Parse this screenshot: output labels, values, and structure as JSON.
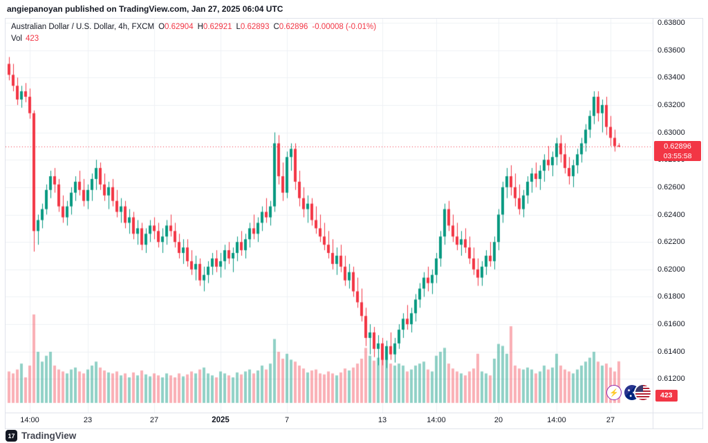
{
  "header": {
    "attribution": "angiepanoyan published on TradingView.com, Jan 27, 2025 06:04 UTC"
  },
  "legend": {
    "symbol_line": "Australian Dollar / U.S. Dollar, 4h, FXCM",
    "ohlc": [
      {
        "label": "O",
        "value": "0.62904"
      },
      {
        "label": "H",
        "value": "0.62921"
      },
      {
        "label": "L",
        "value": "0.62893"
      },
      {
        "label": "C",
        "value": "0.62896"
      }
    ],
    "change": "-0.00008 (-0.01%)",
    "volume_label": "Vol",
    "volume_value": "423"
  },
  "price_scale": {
    "last_price_label": "0.62896",
    "countdown": "03:55:58",
    "volume_axis_value": "423",
    "ticks": [
      "0.63800",
      "0.63600",
      "0.63400",
      "0.63200",
      "0.63000",
      "0.62800",
      "0.62600",
      "0.62400",
      "0.62200",
      "0.62000",
      "0.61800",
      "0.61600",
      "0.61400",
      "0.61200"
    ]
  },
  "time_scale": {
    "ticks": [
      {
        "label": "14:00",
        "index": 5
      },
      {
        "label": "23",
        "index": 19
      },
      {
        "label": "27",
        "index": 35
      },
      {
        "label": "2025",
        "index": 51,
        "bold": true
      },
      {
        "label": "7",
        "index": 67
      },
      {
        "label": "13",
        "index": 90
      },
      {
        "label": "14:00",
        "index": 103
      },
      {
        "label": "20",
        "index": 118
      },
      {
        "label": "14:00",
        "index": 132
      },
      {
        "label": "27",
        "index": 145
      }
    ]
  },
  "footer": {
    "brand": "TradingView",
    "logo_glyph": "17"
  },
  "icons": {
    "lightning_glyph": "⚡"
  },
  "colors": {
    "up": "#089981",
    "down": "#f23645",
    "volume_up": "rgba(8,153,129,0.45)",
    "volume_down": "rgba(242,54,69,0.4)",
    "grid": "#eef1f5",
    "border": "#e0e3eb",
    "axis_text": "#131722",
    "badge_red": "#f23645"
  },
  "chart_data": {
    "type": "candlestick+volume",
    "title": "Australian Dollar / U.S. Dollar, 4h, FXCM",
    "ylim": [
      0.60955,
      0.6383
    ],
    "grid": true,
    "last_price": 0.62896,
    "price_grid_step": 0.002,
    "candle_format": [
      "open",
      "high",
      "low",
      "close",
      "volume"
    ],
    "candles": [
      [
        0.635,
        0.6355,
        0.6338,
        0.6342,
        320
      ],
      [
        0.6342,
        0.635,
        0.633,
        0.6334,
        300
      ],
      [
        0.6334,
        0.634,
        0.632,
        0.6324,
        340
      ],
      [
        0.6324,
        0.6334,
        0.6318,
        0.633,
        400
      ],
      [
        0.633,
        0.6336,
        0.6322,
        0.6326,
        260
      ],
      [
        0.6326,
        0.6332,
        0.631,
        0.6314,
        380
      ],
      [
        0.6314,
        0.6316,
        0.6213,
        0.6228,
        900
      ],
      [
        0.6228,
        0.624,
        0.6218,
        0.6236,
        520
      ],
      [
        0.6236,
        0.6248,
        0.623,
        0.6244,
        420
      ],
      [
        0.6244,
        0.6262,
        0.624,
        0.6258,
        480
      ],
      [
        0.6258,
        0.6272,
        0.6252,
        0.6268,
        520
      ],
      [
        0.6268,
        0.6274,
        0.6256,
        0.6262,
        380
      ],
      [
        0.6262,
        0.6266,
        0.6242,
        0.6246,
        340
      ],
      [
        0.6246,
        0.6254,
        0.6234,
        0.6238,
        320
      ],
      [
        0.6238,
        0.625,
        0.6232,
        0.6246,
        300
      ],
      [
        0.6246,
        0.626,
        0.624,
        0.6256,
        340
      ],
      [
        0.6256,
        0.6268,
        0.625,
        0.6264,
        360
      ],
      [
        0.6264,
        0.6272,
        0.6254,
        0.6258,
        320
      ],
      [
        0.6258,
        0.6266,
        0.6246,
        0.625,
        300
      ],
      [
        0.625,
        0.6262,
        0.6244,
        0.6258,
        340
      ],
      [
        0.6258,
        0.627,
        0.625,
        0.6266,
        380
      ],
      [
        0.6266,
        0.628,
        0.6258,
        0.6274,
        420
      ],
      [
        0.6274,
        0.6278,
        0.6258,
        0.6262,
        360
      ],
      [
        0.6262,
        0.627,
        0.625,
        0.6254,
        330
      ],
      [
        0.6254,
        0.6264,
        0.6244,
        0.626,
        310
      ],
      [
        0.626,
        0.6266,
        0.6246,
        0.625,
        300
      ],
      [
        0.625,
        0.6258,
        0.6238,
        0.6242,
        320
      ],
      [
        0.6242,
        0.6252,
        0.6234,
        0.6246,
        280
      ],
      [
        0.6246,
        0.625,
        0.623,
        0.6234,
        300
      ],
      [
        0.6234,
        0.6244,
        0.6226,
        0.6238,
        260
      ],
      [
        0.6238,
        0.6242,
        0.6222,
        0.6226,
        310
      ],
      [
        0.6226,
        0.6236,
        0.6218,
        0.623,
        280
      ],
      [
        0.623,
        0.6234,
        0.6214,
        0.6218,
        330
      ],
      [
        0.6218,
        0.623,
        0.6212,
        0.6226,
        290
      ],
      [
        0.6226,
        0.6236,
        0.622,
        0.6232,
        270
      ],
      [
        0.6232,
        0.6238,
        0.6222,
        0.6228,
        300
      ],
      [
        0.6228,
        0.6234,
        0.6216,
        0.622,
        280
      ],
      [
        0.622,
        0.623,
        0.6212,
        0.6224,
        260
      ],
      [
        0.6224,
        0.6236,
        0.6218,
        0.6232,
        300
      ],
      [
        0.6232,
        0.624,
        0.6224,
        0.6228,
        280
      ],
      [
        0.6228,
        0.6234,
        0.6216,
        0.622,
        260
      ],
      [
        0.622,
        0.6226,
        0.6208,
        0.6212,
        300
      ],
      [
        0.6212,
        0.6222,
        0.6204,
        0.6216,
        270
      ],
      [
        0.6216,
        0.6222,
        0.6202,
        0.6206,
        290
      ],
      [
        0.6206,
        0.6214,
        0.6196,
        0.62,
        320
      ],
      [
        0.62,
        0.621,
        0.6192,
        0.6204,
        300
      ],
      [
        0.6204,
        0.6208,
        0.6188,
        0.6192,
        340
      ],
      [
        0.6192,
        0.6202,
        0.6184,
        0.6196,
        360
      ],
      [
        0.6196,
        0.6206,
        0.619,
        0.6202,
        300
      ],
      [
        0.6202,
        0.6212,
        0.6196,
        0.6208,
        280
      ],
      [
        0.6208,
        0.6214,
        0.6198,
        0.6202,
        260
      ],
      [
        0.6202,
        0.6212,
        0.6194,
        0.6206,
        320
      ],
      [
        0.6206,
        0.6218,
        0.62,
        0.6214,
        300
      ],
      [
        0.6214,
        0.622,
        0.6204,
        0.6208,
        280
      ],
      [
        0.6208,
        0.6216,
        0.6198,
        0.6212,
        260
      ],
      [
        0.6212,
        0.6224,
        0.6206,
        0.622,
        310
      ],
      [
        0.622,
        0.6228,
        0.621,
        0.6214,
        290
      ],
      [
        0.6214,
        0.6226,
        0.6208,
        0.6222,
        320
      ],
      [
        0.6222,
        0.6234,
        0.6216,
        0.623,
        340
      ],
      [
        0.623,
        0.624,
        0.6222,
        0.6226,
        300
      ],
      [
        0.6226,
        0.6238,
        0.622,
        0.6234,
        330
      ],
      [
        0.6234,
        0.6246,
        0.6228,
        0.6242,
        380
      ],
      [
        0.6242,
        0.6252,
        0.6234,
        0.6238,
        340
      ],
      [
        0.6238,
        0.625,
        0.6232,
        0.6246,
        400
      ],
      [
        0.6246,
        0.63,
        0.6242,
        0.6292,
        650
      ],
      [
        0.6292,
        0.6298,
        0.6262,
        0.6268,
        520
      ],
      [
        0.6268,
        0.6278,
        0.625,
        0.6256,
        450
      ],
      [
        0.6256,
        0.6286,
        0.6252,
        0.6282,
        500
      ],
      [
        0.6282,
        0.6292,
        0.6272,
        0.6288,
        440
      ],
      [
        0.6288,
        0.6292,
        0.6258,
        0.6264,
        420
      ],
      [
        0.6264,
        0.6272,
        0.6246,
        0.6252,
        380
      ],
      [
        0.6252,
        0.626,
        0.6238,
        0.6244,
        350
      ],
      [
        0.6244,
        0.6254,
        0.6234,
        0.6248,
        310
      ],
      [
        0.6248,
        0.6252,
        0.6232,
        0.6236,
        330
      ],
      [
        0.6236,
        0.6246,
        0.6226,
        0.623,
        340
      ],
      [
        0.623,
        0.624,
        0.622,
        0.6224,
        300
      ],
      [
        0.6224,
        0.6234,
        0.6214,
        0.6218,
        290
      ],
      [
        0.6218,
        0.6228,
        0.6208,
        0.6212,
        320
      ],
      [
        0.6212,
        0.6222,
        0.62,
        0.6204,
        300
      ],
      [
        0.6204,
        0.6216,
        0.6196,
        0.621,
        280
      ],
      [
        0.621,
        0.6218,
        0.6198,
        0.6202,
        310
      ],
      [
        0.6202,
        0.621,
        0.6188,
        0.6192,
        350
      ],
      [
        0.6192,
        0.6204,
        0.6186,
        0.6198,
        330
      ],
      [
        0.6198,
        0.6202,
        0.618,
        0.6184,
        360
      ],
      [
        0.6184,
        0.6194,
        0.6172,
        0.6176,
        400
      ],
      [
        0.6176,
        0.6186,
        0.6162,
        0.6166,
        450
      ],
      [
        0.6166,
        0.6172,
        0.6144,
        0.615,
        560
      ],
      [
        0.615,
        0.616,
        0.6138,
        0.6154,
        480
      ],
      [
        0.6154,
        0.6158,
        0.6136,
        0.6142,
        430
      ],
      [
        0.6142,
        0.6152,
        0.613,
        0.6146,
        460
      ],
      [
        0.6146,
        0.615,
        0.613,
        0.6134,
        500
      ],
      [
        0.6134,
        0.6148,
        0.6128,
        0.6144,
        520
      ],
      [
        0.6144,
        0.6154,
        0.6134,
        0.6138,
        400
      ],
      [
        0.6138,
        0.615,
        0.6132,
        0.6146,
        380
      ],
      [
        0.6146,
        0.616,
        0.6142,
        0.6156,
        400
      ],
      [
        0.6156,
        0.6168,
        0.615,
        0.6164,
        380
      ],
      [
        0.6164,
        0.6174,
        0.6156,
        0.616,
        320
      ],
      [
        0.616,
        0.6172,
        0.6154,
        0.6168,
        340
      ],
      [
        0.6168,
        0.6182,
        0.6162,
        0.6178,
        380
      ],
      [
        0.6178,
        0.619,
        0.6172,
        0.6186,
        400
      ],
      [
        0.6186,
        0.6198,
        0.618,
        0.6194,
        420
      ],
      [
        0.6194,
        0.6202,
        0.6184,
        0.619,
        340
      ],
      [
        0.619,
        0.62,
        0.6182,
        0.6196,
        320
      ],
      [
        0.6196,
        0.6212,
        0.619,
        0.6208,
        480
      ],
      [
        0.6208,
        0.6228,
        0.6202,
        0.6224,
        520
      ],
      [
        0.6224,
        0.6248,
        0.6218,
        0.6244,
        560
      ],
      [
        0.6244,
        0.625,
        0.6228,
        0.6232,
        400
      ],
      [
        0.6232,
        0.624,
        0.622,
        0.6224,
        350
      ],
      [
        0.6224,
        0.6234,
        0.6214,
        0.6218,
        320
      ],
      [
        0.6218,
        0.6228,
        0.621,
        0.6222,
        300
      ],
      [
        0.6222,
        0.623,
        0.6212,
        0.6216,
        280
      ],
      [
        0.6216,
        0.6224,
        0.6204,
        0.6208,
        320
      ],
      [
        0.6208,
        0.6216,
        0.6196,
        0.62,
        350
      ],
      [
        0.62,
        0.6208,
        0.6188,
        0.6194,
        500
      ],
      [
        0.6194,
        0.6206,
        0.6188,
        0.6202,
        320
      ],
      [
        0.6202,
        0.6214,
        0.6196,
        0.621,
        300
      ],
      [
        0.621,
        0.622,
        0.6202,
        0.6206,
        280
      ],
      [
        0.6206,
        0.6224,
        0.62,
        0.622,
        450
      ],
      [
        0.622,
        0.6244,
        0.6214,
        0.624,
        600
      ],
      [
        0.624,
        0.6264,
        0.6234,
        0.626,
        580
      ],
      [
        0.626,
        0.6274,
        0.6252,
        0.6268,
        500
      ],
      [
        0.6268,
        0.6276,
        0.6254,
        0.626,
        780
      ],
      [
        0.626,
        0.627,
        0.6246,
        0.6252,
        380
      ],
      [
        0.6252,
        0.6262,
        0.624,
        0.6244,
        350
      ],
      [
        0.6244,
        0.6258,
        0.6238,
        0.6254,
        340
      ],
      [
        0.6254,
        0.6268,
        0.6248,
        0.6264,
        360
      ],
      [
        0.6264,
        0.6274,
        0.6256,
        0.627,
        340
      ],
      [
        0.627,
        0.6278,
        0.626,
        0.6266,
        300
      ],
      [
        0.6266,
        0.6276,
        0.6258,
        0.6272,
        320
      ],
      [
        0.6272,
        0.6284,
        0.6264,
        0.628,
        380
      ],
      [
        0.628,
        0.629,
        0.6272,
        0.6276,
        340
      ],
      [
        0.6276,
        0.6286,
        0.6268,
        0.6282,
        360
      ],
      [
        0.6282,
        0.6296,
        0.6276,
        0.6292,
        500
      ],
      [
        0.6292,
        0.6298,
        0.6278,
        0.6284,
        380
      ],
      [
        0.6284,
        0.6292,
        0.627,
        0.6274,
        340
      ],
      [
        0.6274,
        0.6282,
        0.6262,
        0.6268,
        320
      ],
      [
        0.6268,
        0.628,
        0.626,
        0.6276,
        300
      ],
      [
        0.6276,
        0.6288,
        0.627,
        0.6284,
        340
      ],
      [
        0.6284,
        0.6296,
        0.6278,
        0.6292,
        380
      ],
      [
        0.6292,
        0.6306,
        0.6286,
        0.6302,
        420
      ],
      [
        0.6302,
        0.6316,
        0.6296,
        0.6312,
        460
      ],
      [
        0.6312,
        0.633,
        0.6306,
        0.6326,
        520
      ],
      [
        0.6326,
        0.633,
        0.6308,
        0.6314,
        420
      ],
      [
        0.6314,
        0.6324,
        0.63,
        0.632,
        380
      ],
      [
        0.632,
        0.6326,
        0.6298,
        0.6304,
        400
      ],
      [
        0.6304,
        0.6312,
        0.629,
        0.6296,
        360
      ],
      [
        0.6296,
        0.6302,
        0.6286,
        0.629,
        320
      ],
      [
        0.62904,
        0.62921,
        0.62893,
        0.62896,
        423
      ]
    ]
  }
}
